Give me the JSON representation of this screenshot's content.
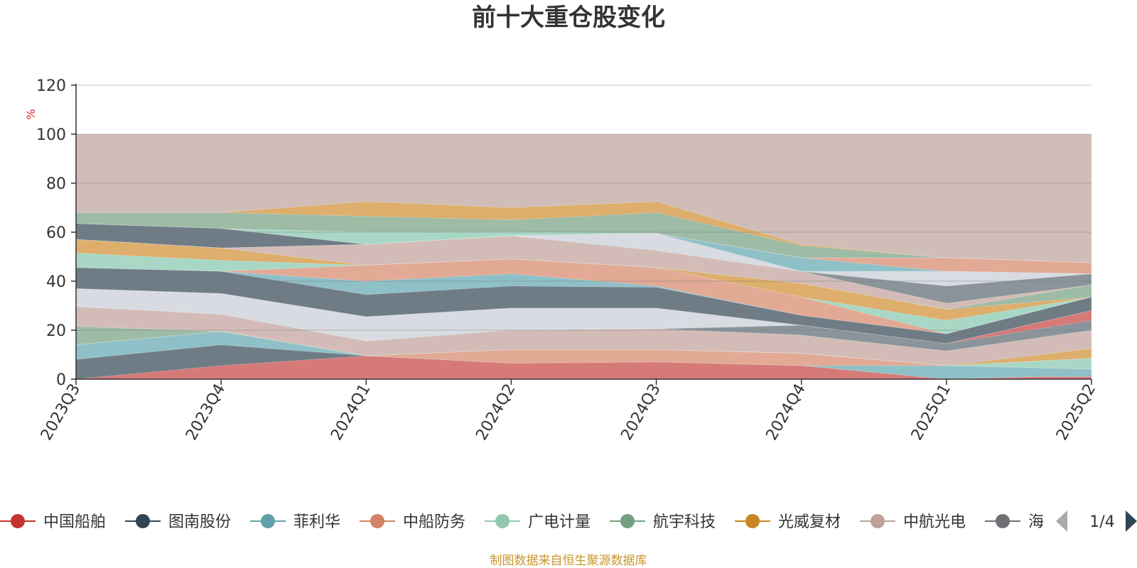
{
  "chart_data": {
    "type": "area",
    "title": "前十大重仓股变化",
    "ylabel": "%",
    "ylim": [
      0,
      120
    ],
    "yticks": [
      0,
      20,
      40,
      60,
      80,
      100,
      120
    ],
    "grid": true,
    "legend_position": "bottom",
    "categories": [
      "2023Q3",
      "2023Q4",
      "2024Q1",
      "2024Q2",
      "2024Q3",
      "2024Q4",
      "2025Q1",
      "2025Q2"
    ],
    "bands": [
      {
        "color": "#d67a78",
        "values": [
          0,
          5.5,
          9.5,
          6.5,
          7,
          5.5,
          0,
          0
        ],
        "top_points": [
          [
            0,
            0
          ],
          [
            1,
            5.5
          ],
          [
            2,
            9.5
          ],
          [
            3,
            6.5
          ],
          [
            4,
            7
          ],
          [
            5,
            5.5
          ],
          [
            6,
            0
          ],
          [
            6.66,
            1
          ],
          [
            7,
            1
          ]
        ]
      },
      {
        "color": "#6f7c86",
        "values": [
          8,
          14,
          9.5,
          6.5,
          7,
          5.5,
          0,
          0
        ],
        "top_points": [
          [
            0,
            8
          ],
          [
            1,
            14
          ],
          [
            2,
            9.5
          ],
          [
            3,
            6.5
          ],
          [
            4,
            7
          ],
          [
            5,
            5.5
          ],
          [
            6,
            0
          ],
          [
            6.66,
            1
          ],
          [
            7,
            1
          ]
        ]
      },
      {
        "color": "#8fc0c7",
        "values": [
          14,
          19.5,
          9.5,
          6.5,
          7,
          5.5,
          5.5,
          4
        ],
        "top_points": [
          [
            0,
            14
          ],
          [
            1,
            19.5
          ],
          [
            2,
            9.5
          ],
          [
            3,
            6.5
          ],
          [
            4,
            7
          ],
          [
            5,
            5.5
          ],
          [
            6,
            5.5
          ],
          [
            7,
            4
          ]
        ]
      },
      {
        "color": "#e2a994",
        "values": [
          14,
          19.5,
          9.5,
          12,
          12,
          10.5,
          5.5,
          4
        ],
        "top_points": [
          [
            0,
            14
          ],
          [
            1,
            19.5
          ],
          [
            2,
            9.5
          ],
          [
            3,
            12
          ],
          [
            4,
            12
          ],
          [
            5,
            10.5
          ],
          [
            6,
            5.5
          ],
          [
            7,
            4
          ]
        ]
      },
      {
        "color": "#a8d8c5",
        "values": [
          14,
          19.5,
          9.5,
          12,
          12,
          10.5,
          5.5,
          8.5
        ],
        "top_points": [
          [
            0,
            14
          ],
          [
            1,
            19.5
          ],
          [
            2,
            9.5
          ],
          [
            3,
            12
          ],
          [
            4,
            12
          ],
          [
            5,
            10.5
          ],
          [
            6,
            5.5
          ],
          [
            7,
            8.5
          ]
        ]
      },
      {
        "color": "#9dbba5",
        "values": [
          21.5,
          19.5,
          9.5,
          12,
          12,
          10.5,
          5.5,
          8.5
        ],
        "top_points": [
          [
            0,
            21.5
          ],
          [
            1,
            19.5
          ],
          [
            2,
            9.5
          ],
          [
            3,
            12
          ],
          [
            4,
            12
          ],
          [
            5,
            10.5
          ],
          [
            6,
            5.5
          ],
          [
            7,
            8.5
          ]
        ]
      },
      {
        "color": "#ddae6c",
        "values": [
          21.5,
          19.5,
          9.5,
          12,
          12,
          10.5,
          5.5,
          12.5
        ],
        "top_points": [
          [
            0,
            21.5
          ],
          [
            1,
            19.5
          ],
          [
            2,
            9.5
          ],
          [
            3,
            12
          ],
          [
            4,
            12
          ],
          [
            5,
            10.5
          ],
          [
            6,
            5.5
          ],
          [
            7,
            12.5
          ]
        ]
      },
      {
        "color": "#d3bcb7",
        "values": [
          29.5,
          26.5,
          15.5,
          20,
          20.5,
          18,
          11.5,
          20
        ],
        "top_points": [
          [
            0,
            29.5
          ],
          [
            1,
            26.5
          ],
          [
            2,
            15.5
          ],
          [
            3,
            20
          ],
          [
            4,
            20.5
          ],
          [
            5,
            18
          ],
          [
            6,
            11.5
          ],
          [
            7,
            20
          ]
        ]
      },
      {
        "color": "#8a949a",
        "values": [
          29.5,
          26.5,
          15.5,
          20,
          20.5,
          22,
          14.5,
          24
        ],
        "top_points": [
          [
            0,
            29.5
          ],
          [
            1,
            26.5
          ],
          [
            2,
            15.5
          ],
          [
            3,
            20
          ],
          [
            4,
            20.5
          ],
          [
            5,
            22
          ],
          [
            6,
            14.5
          ],
          [
            7,
            24
          ]
        ]
      },
      {
        "color": "#d67a78",
        "values": [
          29.5,
          26.5,
          15.5,
          20,
          20.5,
          22,
          14.5,
          28
        ],
        "top_points": [
          [
            0,
            29.5
          ],
          [
            1,
            26.5
          ],
          [
            2,
            15.5
          ],
          [
            3,
            20
          ],
          [
            4,
            20.5
          ],
          [
            5,
            22
          ],
          [
            6,
            14.5
          ],
          [
            7,
            28
          ]
        ]
      },
      {
        "color": "#d8dce2",
        "values": [
          37,
          35,
          25.5,
          29,
          29,
          22,
          14.5,
          28
        ],
        "top_points": [
          [
            0,
            37
          ],
          [
            1,
            35
          ],
          [
            2,
            25.5
          ],
          [
            3,
            29
          ],
          [
            4,
            29
          ],
          [
            5,
            22
          ],
          [
            6,
            14.5
          ],
          [
            7,
            28
          ]
        ]
      },
      {
        "color": "#6f7c86",
        "values": [
          45.5,
          44,
          34.5,
          38,
          37.5,
          26,
          18.5,
          33.5
        ],
        "top_points": [
          [
            0,
            45.5
          ],
          [
            1,
            44
          ],
          [
            2,
            34.5
          ],
          [
            3,
            38
          ],
          [
            4,
            37.5
          ],
          [
            5,
            26
          ],
          [
            6,
            18.5
          ],
          [
            7,
            33.5
          ]
        ]
      },
      {
        "color": "#8fc0c7",
        "values": [
          45.5,
          44,
          40,
          43,
          38,
          26,
          18.5,
          33.5
        ],
        "top_points": [
          [
            0,
            45.5
          ],
          [
            1,
            44
          ],
          [
            2,
            40
          ],
          [
            3,
            43
          ],
          [
            4,
            38
          ],
          [
            5,
            26
          ],
          [
            6,
            18.5
          ],
          [
            7,
            33.5
          ]
        ]
      },
      {
        "color": "#e2a994",
        "values": [
          45.5,
          44,
          46.5,
          49,
          45.5,
          33.5,
          18.5,
          33.5
        ],
        "top_points": [
          [
            0,
            45.5
          ],
          [
            1,
            44
          ],
          [
            2,
            46.5
          ],
          [
            3,
            49
          ],
          [
            4,
            45.5
          ],
          [
            5,
            33.5
          ],
          [
            6,
            18.5
          ],
          [
            7,
            33.5
          ]
        ]
      },
      {
        "color": "#a8d8c5",
        "values": [
          51.5,
          48.5,
          46.5,
          49,
          45.5,
          33.5,
          24,
          33.5
        ],
        "top_points": [
          [
            0,
            51.5
          ],
          [
            1,
            48.5
          ],
          [
            2,
            46.5
          ],
          [
            3,
            49
          ],
          [
            4,
            45.5
          ],
          [
            5,
            33.5
          ],
          [
            6,
            24
          ],
          [
            7,
            33.5
          ]
        ]
      },
      {
        "color": "#ddae6c",
        "values": [
          57,
          53.5,
          46.5,
          49,
          45.5,
          39,
          28.5,
          33.5
        ],
        "top_points": [
          [
            0,
            57
          ],
          [
            1,
            53.5
          ],
          [
            2,
            46.5
          ],
          [
            3,
            49
          ],
          [
            4,
            45.5
          ],
          [
            5,
            39
          ],
          [
            6,
            28.5
          ],
          [
            7,
            33.5
          ]
        ]
      },
      {
        "color": "#9dbba5",
        "values": [
          57,
          53.5,
          46.5,
          49,
          45.5,
          39,
          28.5,
          38.5
        ],
        "top_points": [
          [
            0,
            57
          ],
          [
            1,
            53.5
          ],
          [
            2,
            46.5
          ],
          [
            3,
            49
          ],
          [
            4,
            45.5
          ],
          [
            5,
            39
          ],
          [
            6,
            28.5
          ],
          [
            7,
            38.5
          ]
        ]
      },
      {
        "color": "#d3bcb7",
        "values": [
          57,
          53.5,
          55,
          58.5,
          52.5,
          44,
          31,
          38.5
        ],
        "top_points": [
          [
            0,
            57
          ],
          [
            1,
            53.5
          ],
          [
            2,
            55
          ],
          [
            3,
            58.5
          ],
          [
            4,
            52.5
          ],
          [
            5,
            44
          ],
          [
            6,
            31
          ],
          [
            7,
            38.5
          ]
        ]
      },
      {
        "color": "#8a949a",
        "values": [
          57,
          53.5,
          55,
          58.5,
          52.5,
          44,
          38,
          43
        ],
        "top_points": [
          [
            0,
            57
          ],
          [
            1,
            53.5
          ],
          [
            2,
            55
          ],
          [
            3,
            58.5
          ],
          [
            4,
            52.5
          ],
          [
            5,
            44
          ],
          [
            6,
            38
          ],
          [
            7,
            43
          ]
        ]
      },
      {
        "color": "#d8dce2",
        "values": [
          57,
          53.5,
          55,
          58.5,
          59.5,
          44,
          44,
          43
        ],
        "top_points": [
          [
            0,
            57
          ],
          [
            1,
            53.5
          ],
          [
            2,
            55
          ],
          [
            3,
            58.5
          ],
          [
            4,
            59.5
          ],
          [
            5,
            44
          ],
          [
            6,
            44
          ],
          [
            7,
            43
          ]
        ]
      },
      {
        "color": "#6f7c86",
        "values": [
          63.5,
          61.5,
          55,
          58.5,
          59.5,
          44,
          44,
          43
        ],
        "top_points": [
          [
            0,
            63.5
          ],
          [
            1,
            61.5
          ],
          [
            2,
            55
          ],
          [
            3,
            58.5
          ],
          [
            4,
            59.5
          ],
          [
            5,
            44
          ],
          [
            6,
            44
          ],
          [
            7,
            43
          ]
        ]
      },
      {
        "color": "#8fc0c7",
        "values": [
          63.5,
          61.5,
          55,
          58.5,
          59.5,
          49.5,
          44,
          43
        ],
        "top_points": [
          [
            0,
            63.5
          ],
          [
            1,
            61.5
          ],
          [
            2,
            55
          ],
          [
            3,
            58.5
          ],
          [
            4,
            59.5
          ],
          [
            5,
            49.5
          ],
          [
            6,
            44
          ],
          [
            7,
            43
          ]
        ]
      },
      {
        "color": "#e2a994",
        "values": [
          63.5,
          61.5,
          55,
          58.5,
          59.5,
          49.5,
          49.5,
          47.5
        ],
        "top_points": [
          [
            0,
            63.5
          ],
          [
            1,
            61.5
          ],
          [
            2,
            55
          ],
          [
            3,
            58.5
          ],
          [
            4,
            59.5
          ],
          [
            5,
            49.5
          ],
          [
            6,
            49.5
          ],
          [
            7,
            47.5
          ]
        ]
      },
      {
        "color": "#a8d8c5",
        "values": [
          63.5,
          61.5,
          60,
          60,
          59.5,
          49.5,
          49.5,
          47.5
        ],
        "top_points": [
          [
            0,
            63.5
          ],
          [
            1,
            61.5
          ],
          [
            2,
            60
          ],
          [
            3,
            60
          ],
          [
            4,
            59.5
          ],
          [
            5,
            49.5
          ],
          [
            6,
            49.5
          ],
          [
            7,
            47.5
          ]
        ]
      },
      {
        "color": "#9dbba5",
        "values": [
          68,
          68,
          66.5,
          65,
          68,
          54.5,
          49.5,
          47.5
        ],
        "top_points": [
          [
            0,
            68
          ],
          [
            1,
            68
          ],
          [
            2,
            66.5
          ],
          [
            3,
            65
          ],
          [
            4,
            68
          ],
          [
            5,
            54.5
          ],
          [
            6,
            49.5
          ],
          [
            7,
            47.5
          ]
        ]
      },
      {
        "color": "#ddae6c",
        "values": [
          68,
          68,
          72.5,
          70,
          72.5,
          55,
          49.5,
          47.5
        ],
        "top_points": [
          [
            0,
            68
          ],
          [
            1,
            68
          ],
          [
            2,
            72.5
          ],
          [
            3,
            70
          ],
          [
            4,
            72.5
          ],
          [
            5,
            55
          ],
          [
            6,
            49.5
          ],
          [
            7,
            47.5
          ]
        ]
      },
      {
        "color": "#d1bdb8",
        "values": [
          100,
          100,
          100,
          100,
          100,
          100,
          100,
          100
        ],
        "top_points": [
          [
            0,
            100
          ],
          [
            1,
            100
          ],
          [
            2,
            100
          ],
          [
            3,
            100
          ],
          [
            4,
            100
          ],
          [
            5,
            100
          ],
          [
            6,
            100
          ],
          [
            7,
            100
          ]
        ]
      }
    ],
    "legend": {
      "items": [
        {
          "name": "中国船舶",
          "color": "#c23531"
        },
        {
          "name": "图南股份",
          "color": "#2f4554"
        },
        {
          "name": "菲利华",
          "color": "#61a0a8"
        },
        {
          "name": "中船防务",
          "color": "#d48265"
        },
        {
          "name": "广电计量",
          "color": "#91c7ae"
        },
        {
          "name": "航宇科技",
          "color": "#749f83"
        },
        {
          "name": "光威复材",
          "color": "#ca8622"
        },
        {
          "name": "中航光电",
          "color": "#bda29a"
        },
        {
          "name": "海",
          "color": "#6e7074"
        }
      ],
      "page": "1/4"
    },
    "source": "制图数据来自恒生聚源数据库"
  }
}
